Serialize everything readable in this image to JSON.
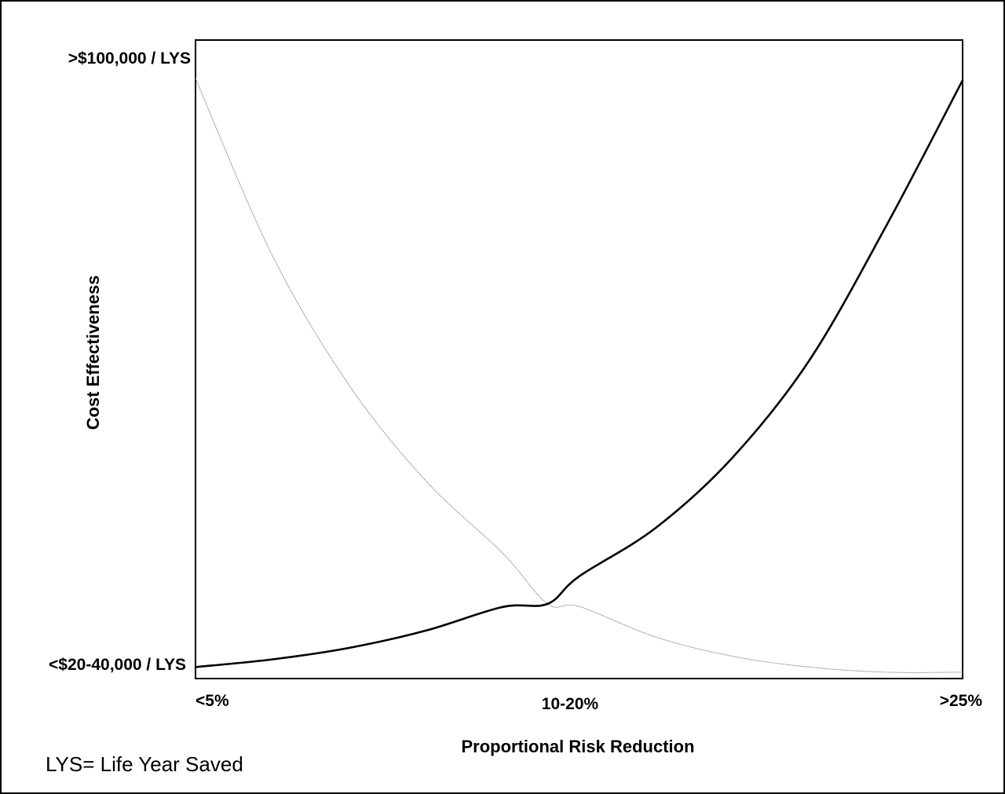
{
  "chart_data": {
    "type": "line",
    "title": "",
    "xlabel": "Proportional Risk Reduction",
    "ylabel": "Cost Effectiveness",
    "x_tick_labels": [
      "<5%",
      "10-20%",
      ">25%"
    ],
    "y_tick_labels": [
      ">$100,000 / LYS",
      "<$20-40,000 / LYS"
    ],
    "xlim": [
      0,
      1
    ],
    "ylim": [
      0,
      1
    ],
    "grid": false,
    "series": [
      {
        "style": "thin dotted gray",
        "color": "#9a9a9a",
        "x": [
          0.0,
          0.1,
          0.2,
          0.3,
          0.4,
          0.459,
          0.5,
          0.6,
          0.7,
          0.8,
          0.9,
          1.0
        ],
        "y": [
          0.94,
          0.663,
          0.46,
          0.31,
          0.197,
          0.117,
          0.113,
          0.065,
          0.035,
          0.018,
          0.01,
          0.01
        ]
      },
      {
        "style": "thick solid black",
        "color": "#000000",
        "x": [
          0.0,
          0.1,
          0.2,
          0.3,
          0.4,
          0.459,
          0.5,
          0.6,
          0.7,
          0.8,
          0.9,
          1.0
        ],
        "y": [
          0.018,
          0.03,
          0.048,
          0.075,
          0.112,
          0.117,
          0.16,
          0.236,
          0.346,
          0.498,
          0.708,
          0.937
        ]
      }
    ]
  },
  "footnote": "LYS= Life Year Saved"
}
